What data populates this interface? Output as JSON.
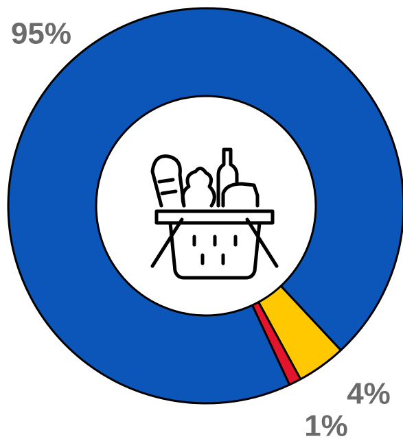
{
  "chart_data": {
    "type": "donut",
    "values": [
      95,
      4,
      1
    ],
    "value_labels": [
      "95%",
      "4%",
      "1%"
    ],
    "colors": [
      "#0b56b8",
      "#ffc800",
      "#e3152c"
    ]
  }
}
